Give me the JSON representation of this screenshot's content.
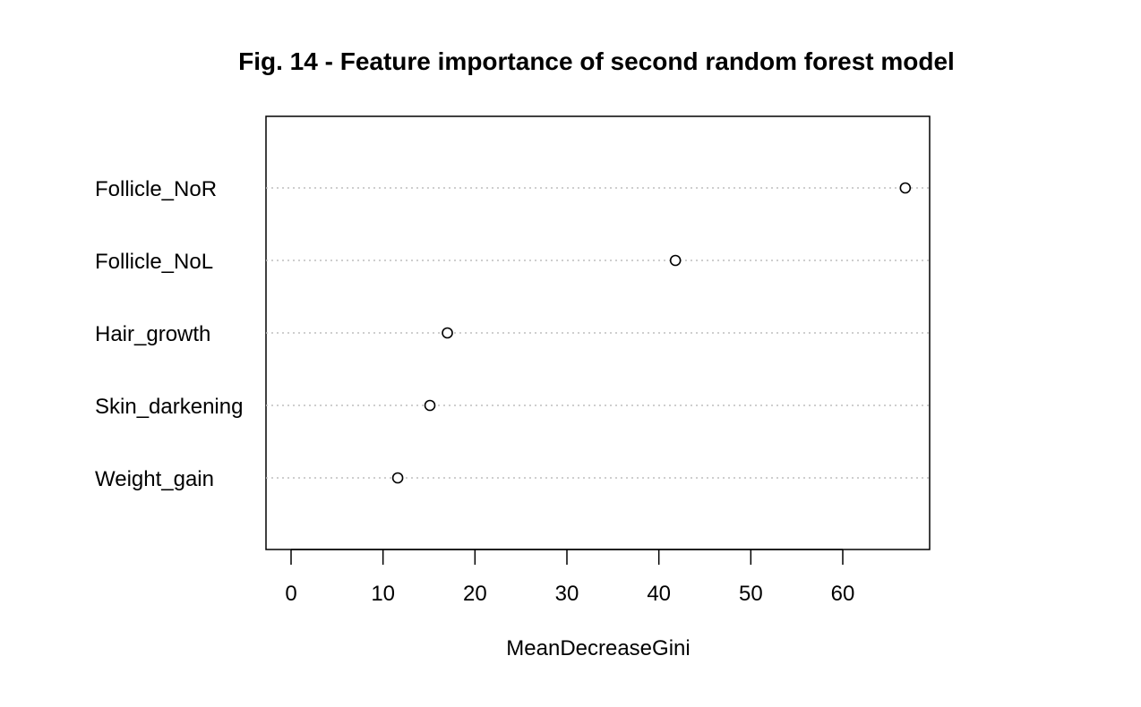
{
  "chart_data": {
    "type": "scatter",
    "title": "Fig. 14 - Feature importance of second random forest model",
    "xlabel": "MeanDecreaseGini",
    "ylabel": "",
    "xlim": [
      -2,
      69
    ],
    "xticks": [
      0,
      10,
      20,
      30,
      40,
      50,
      60
    ],
    "grid": "horizontal dotted guide lines per category",
    "categories": [
      "Follicle_NoR",
      "Follicle_NoL",
      "Hair_growth",
      "Skin_darkening",
      "Weight_gain"
    ],
    "values": [
      66.8,
      41.8,
      17.0,
      15.1,
      11.6
    ],
    "colors": {
      "point_stroke": "#000000",
      "point_fill": "#ffffff",
      "guide_line": "#bdbdbd",
      "frame": "#000000"
    }
  }
}
